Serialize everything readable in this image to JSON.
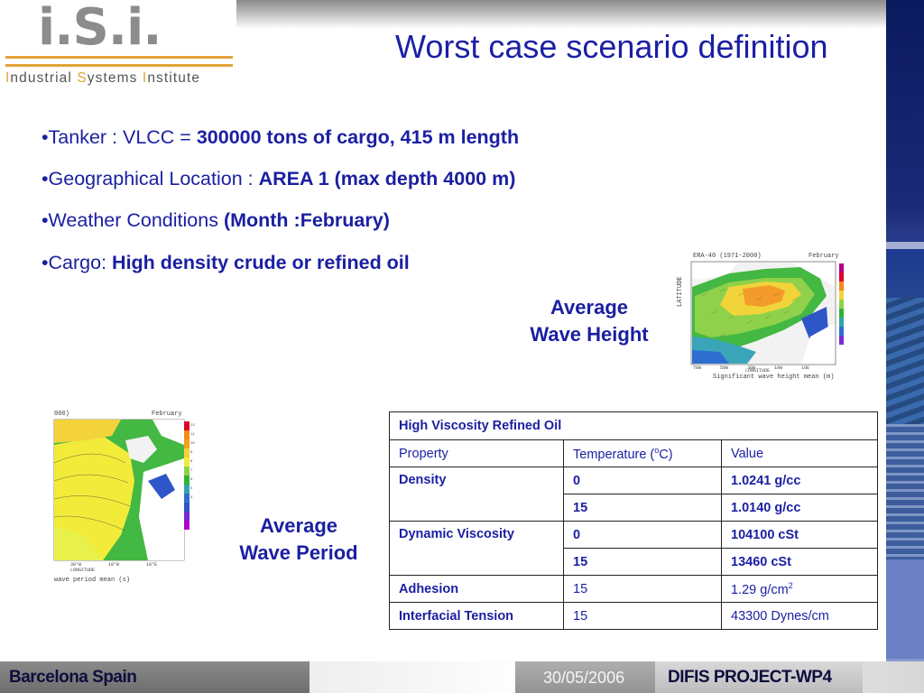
{
  "logo": {
    "mark": "i.S.i.",
    "subtitle_parts": [
      "I",
      "ndustrial ",
      "S",
      "ystems ",
      "I",
      "nstitute"
    ]
  },
  "title": "Worst case scenario definition",
  "bullets": [
    {
      "prefix": "•Tanker : VLCC = ",
      "bold": "300000 tons of cargo, 415 m length"
    },
    {
      "prefix": "•Geographical Location : ",
      "bold": "AREA 1 (max depth 4000 m)"
    },
    {
      "prefix": "•Weather Conditions ",
      "bold": "(Month :February)"
    },
    {
      "prefix": "•Cargo: ",
      "bold": "High density crude or refined oil"
    }
  ],
  "captions": {
    "wave_height": [
      "Average",
      "Wave Height"
    ],
    "wave_period": [
      "Average",
      "Wave Period"
    ]
  },
  "maps": {
    "height": {
      "title_left": "ERA-40 (1971-2000)",
      "title_right": "February",
      "x_label": "LONGITUDE",
      "y_label": "LATITUDE",
      "footer": "Significant wave height mean (m)",
      "lon_ticks": [
        "70W",
        "50W",
        "30W",
        "10W",
        "10E"
      ],
      "lat_ticks": [
        "70N",
        "60N",
        "50N",
        "40N",
        "30N",
        "20N"
      ]
    },
    "period": {
      "title_left": "000)",
      "title_right": "February",
      "x_label": "LONGITUDE",
      "footer": "wave period mean (s)",
      "lon_ticks": [
        "30°W",
        "10°W",
        "10°E"
      ],
      "legend_ticks": [
        "12",
        "11",
        "10",
        "9",
        "8",
        "7",
        "6",
        "5",
        "4"
      ]
    }
  },
  "table": {
    "title": "High Viscosity Refined Oil",
    "headers": [
      "Property",
      "Temperature (",
      "o",
      "C)",
      "Value"
    ],
    "rows": {
      "density": {
        "label": "Density",
        "r1": [
          "0",
          "1.0241 g/cc"
        ],
        "r2": [
          "15",
          "1.0140 g/cc"
        ]
      },
      "viscosity": {
        "label": "Dynamic Viscosity",
        "r1": [
          "0",
          "104100 cSt"
        ],
        "r2": [
          "15",
          "13460 cSt"
        ]
      },
      "adhesion": {
        "label": "Adhesion",
        "temp": "15",
        "value": "1.29 g/cm",
        "sup": "2"
      },
      "tension": {
        "label": "Interfacial Tension",
        "temp": "15",
        "value": "43300 Dynes/cm"
      }
    }
  },
  "footer": {
    "left": "Barcelona Spain",
    "date": "30/05/2006",
    "project": "DIFIS PROJECT-WP4"
  },
  "colors": {
    "title": "#1b1fa3",
    "text": "#1a1fa2",
    "logo_accent": "#e2a33a",
    "logo_grey": "#8c8c8c"
  }
}
